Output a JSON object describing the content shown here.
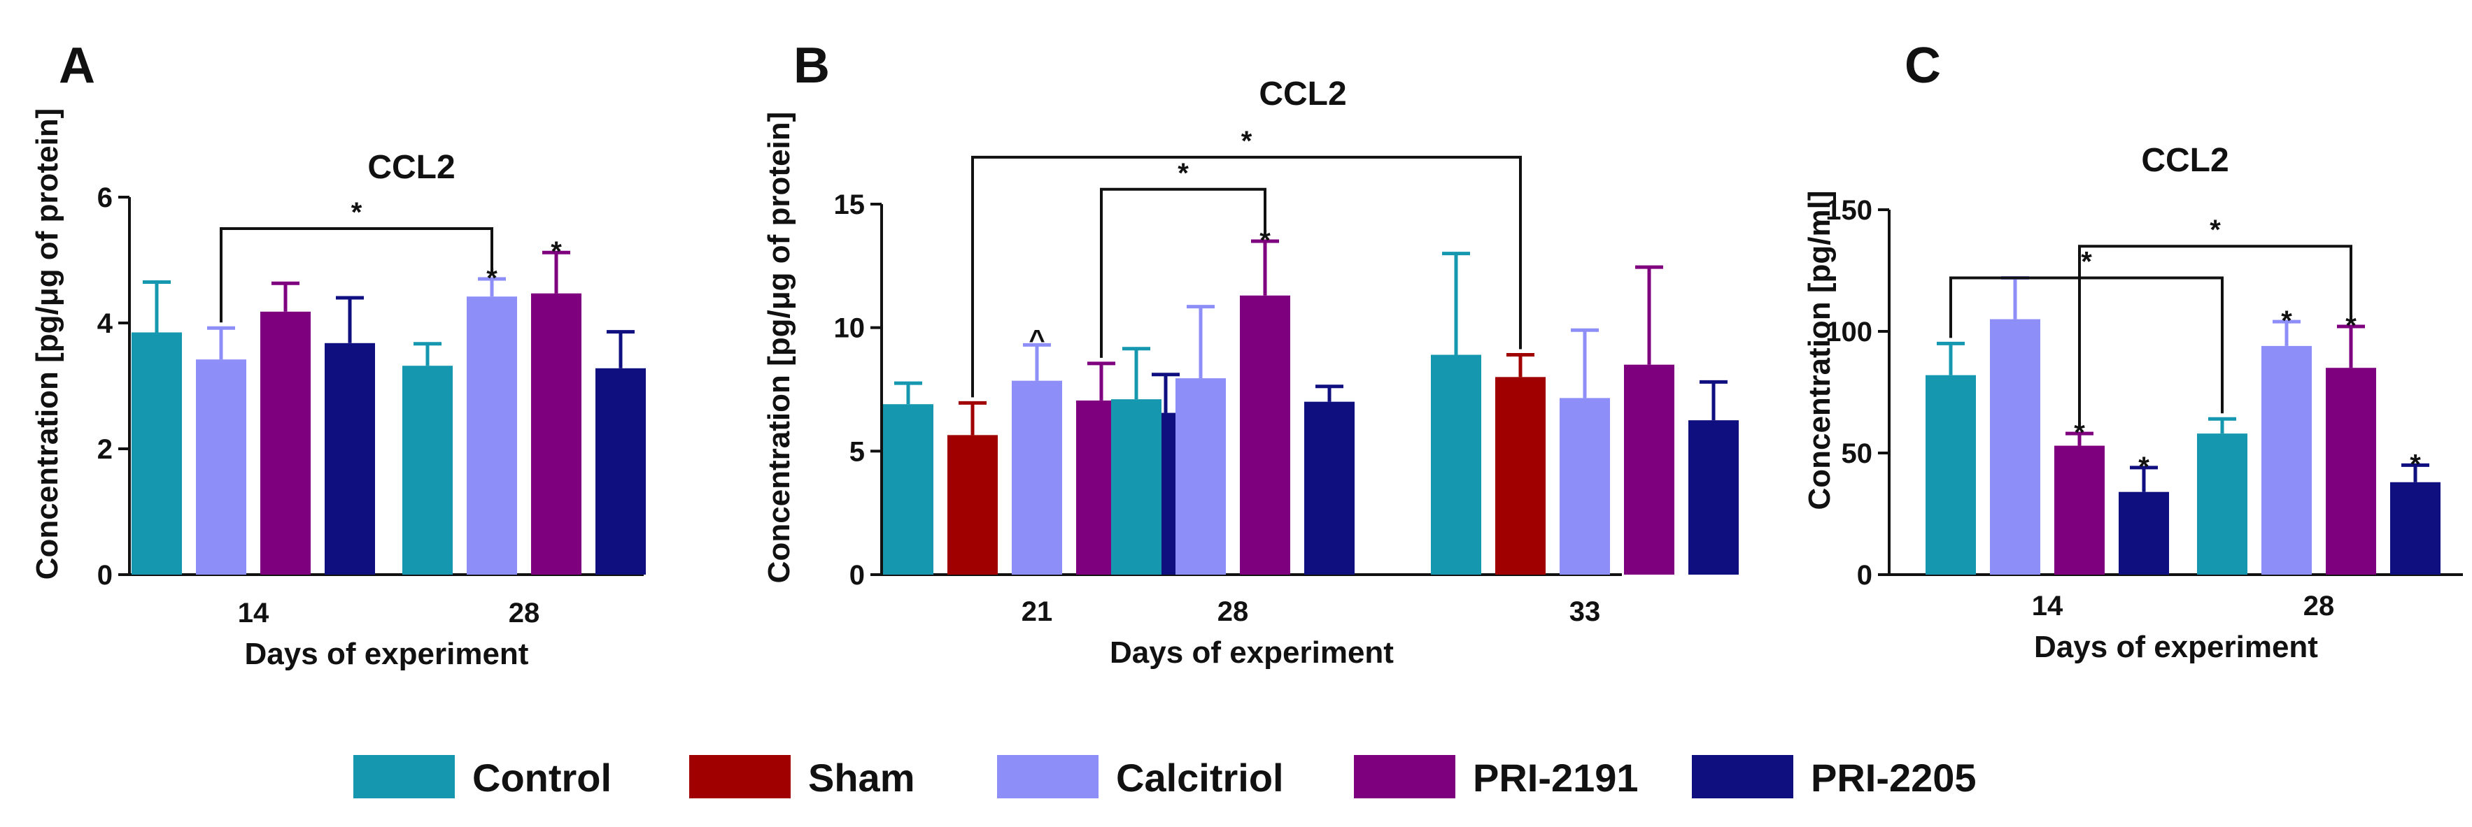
{
  "colors": {
    "Control": "#1597b0",
    "Sham": "#a10000",
    "Calcitriol": "#8e8ef8",
    "PRI-2191": "#7f007f",
    "PRI-2205": "#0f0f80"
  },
  "legend": [
    "Control",
    "Sham",
    "Calcitriol",
    "PRI-2191",
    "PRI-2205"
  ],
  "chart_data": [
    {
      "type": "bar",
      "panel": "A",
      "title": "CCL2",
      "xlabel": "Days of experiment",
      "ylabel": "Concentration [pg/μg of protein]",
      "ylim": [
        0,
        6
      ],
      "yticks": [
        0,
        2,
        4,
        6
      ],
      "categories": [
        "14",
        "28"
      ],
      "series": [
        {
          "name": "Control",
          "values": [
            3.85,
            3.32
          ],
          "errors": [
            0.8,
            0.35
          ],
          "marks": [
            "",
            ""
          ]
        },
        {
          "name": "Calcitriol",
          "values": [
            3.42,
            4.42
          ],
          "errors": [
            0.5,
            0.28
          ],
          "marks": [
            "",
            "*"
          ]
        },
        {
          "name": "PRI-2191",
          "values": [
            4.18,
            4.47
          ],
          "errors": [
            0.45,
            0.65
          ],
          "marks": [
            "",
            "*"
          ]
        },
        {
          "name": "PRI-2205",
          "values": [
            3.68,
            3.28
          ],
          "errors": [
            0.72,
            0.58
          ],
          "marks": [
            "",
            ""
          ]
        }
      ],
      "brackets": [
        {
          "from": [
            0,
            1
          ],
          "to": [
            1,
            1
          ],
          "y": 5.5,
          "label": "*"
        }
      ]
    },
    {
      "type": "bar",
      "panel": "B",
      "title": "CCL2",
      "xlabel": "Days of experiment",
      "ylabel": "Concentration [pg/μg of protein]",
      "ylim": [
        0,
        15
      ],
      "yticks": [
        0,
        5,
        10,
        15
      ],
      "categories": [
        "21",
        "28",
        "33"
      ],
      "series": [
        {
          "name": "Control",
          "values": [
            6.9,
            7.1,
            8.9
          ],
          "errors": [
            0.85,
            2.05,
            4.1
          ],
          "marks": [
            "",
            "",
            ""
          ]
        },
        {
          "name": "Sham",
          "values": [
            5.65,
            null,
            8.0
          ],
          "errors": [
            1.3,
            null,
            0.9
          ],
          "marks": [
            "",
            "",
            ""
          ]
        },
        {
          "name": "Calcitriol",
          "values": [
            7.85,
            7.95,
            7.15
          ],
          "errors": [
            1.45,
            2.9,
            2.75
          ],
          "marks": [
            "^",
            "",
            ""
          ]
        },
        {
          "name": "PRI-2191",
          "values": [
            7.05,
            11.3,
            8.5
          ],
          "errors": [
            1.5,
            2.2,
            3.95
          ],
          "marks": [
            "",
            "*",
            ""
          ]
        },
        {
          "name": "PRI-2205",
          "values": [
            6.55,
            7.0,
            6.25
          ],
          "errors": [
            1.55,
            0.62,
            1.55
          ],
          "marks": [
            "",
            "",
            ""
          ]
        }
      ],
      "brackets": [
        {
          "from": [
            0,
            1
          ],
          "to": [
            2,
            1
          ],
          "y": 16.9,
          "label": "*"
        },
        {
          "from": [
            0,
            3
          ],
          "to": [
            1,
            3
          ],
          "y": 15.6,
          "label": "*"
        }
      ]
    },
    {
      "type": "bar",
      "panel": "C",
      "title": "CCL2",
      "xlabel": "Days of experiment",
      "ylabel": "Concentration [pg/ml]",
      "ylim": [
        0,
        150
      ],
      "yticks": [
        0,
        50,
        100,
        150
      ],
      "categories": [
        "14",
        "28"
      ],
      "series": [
        {
          "name": "Control",
          "values": [
            82,
            58
          ],
          "errors": [
            13,
            6
          ],
          "marks": [
            "",
            ""
          ]
        },
        {
          "name": "Calcitriol",
          "values": [
            105,
            94
          ],
          "errors": [
            17,
            10
          ],
          "marks": [
            "",
            "*"
          ]
        },
        {
          "name": "PRI-2191",
          "values": [
            53,
            85
          ],
          "errors": [
            5,
            17
          ],
          "marks": [
            "*",
            "*"
          ]
        },
        {
          "name": "PRI-2205",
          "values": [
            34,
            38
          ],
          "errors": [
            10,
            7
          ],
          "marks": [
            "*",
            "*"
          ]
        }
      ],
      "brackets": [
        {
          "from": [
            0,
            0
          ],
          "to": [
            1,
            0
          ],
          "y": 122,
          "label": "*"
        },
        {
          "from": [
            0,
            2
          ],
          "to": [
            1,
            2
          ],
          "y": 135,
          "label": "*"
        }
      ]
    }
  ]
}
